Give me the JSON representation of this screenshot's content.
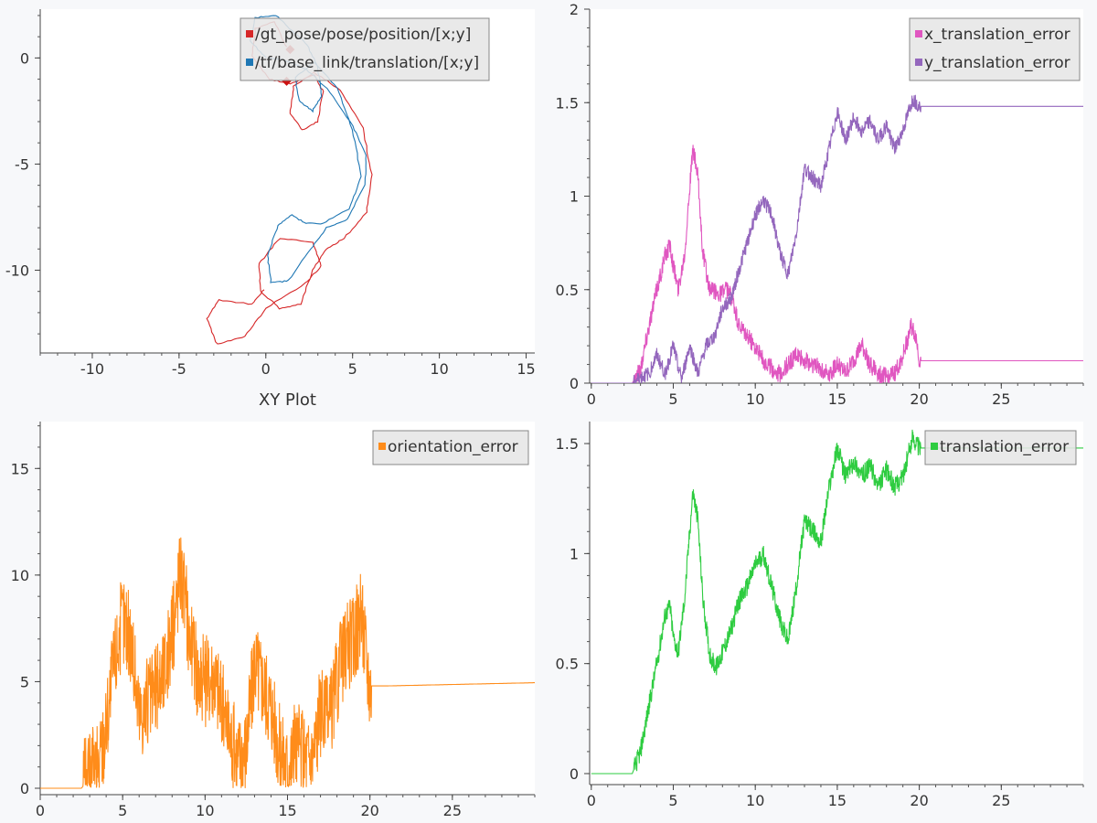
{
  "chart_data": [
    {
      "id": "xy",
      "type": "line",
      "xlabel": "XY Plot",
      "xlim": [
        -13,
        15.5
      ],
      "ylim": [
        -13.9,
        2.3
      ],
      "xticks": [
        -10,
        -5,
        0,
        5,
        10,
        15
      ],
      "yticks": [
        0,
        -5,
        -10
      ],
      "legend_position": "top-right",
      "series": [
        {
          "name": "/gt_pose/pose/position/[x;y]",
          "color": "#d62728",
          "points": [
            [
              1.2,
              0.5
            ],
            [
              0.5,
              1.7
            ],
            [
              -0.6,
              1.4
            ],
            [
              -0.8,
              0.1
            ],
            [
              0.2,
              -1.0
            ],
            [
              1.4,
              -1.2
            ],
            [
              2.8,
              -0.8
            ],
            [
              3.3,
              -1.6
            ],
            [
              3.0,
              -3.0
            ],
            [
              2.1,
              -3.4
            ],
            [
              1.4,
              -2.6
            ],
            [
              1.6,
              -1.3
            ],
            [
              2.8,
              -0.7
            ],
            [
              4.3,
              -1.5
            ],
            [
              5.6,
              -3.3
            ],
            [
              6.1,
              -5.5
            ],
            [
              5.8,
              -7.3
            ],
            [
              4.5,
              -8.5
            ],
            [
              3.5,
              -9.0
            ],
            [
              2.7,
              -10.0
            ],
            [
              2.0,
              -11.6
            ],
            [
              0.8,
              -11.8
            ],
            [
              -0.3,
              -11.0
            ],
            [
              -0.4,
              -9.7
            ],
            [
              0.8,
              -8.5
            ],
            [
              2.7,
              -8.7
            ],
            [
              3.2,
              -9.8
            ],
            [
              2.3,
              -10.6
            ],
            [
              0.0,
              -11.8
            ],
            [
              -1.2,
              -13.1
            ],
            [
              -2.8,
              -13.5
            ],
            [
              -3.4,
              -12.3
            ],
            [
              -2.7,
              -11.4
            ],
            [
              -0.8,
              -11.6
            ],
            [
              0.0,
              -10.8
            ]
          ]
        },
        {
          "name": "/tf/base_link/translation/[x;y]",
          "color": "#1f77b4",
          "points": [
            [
              0.0,
              0.0
            ],
            [
              -0.9,
              0.8
            ],
            [
              -0.6,
              1.9
            ],
            [
              0.6,
              2.0
            ],
            [
              1.5,
              1.3
            ],
            [
              2.4,
              0.6
            ],
            [
              3.0,
              -0.4
            ],
            [
              3.2,
              -1.8
            ],
            [
              2.7,
              -2.5
            ],
            [
              1.9,
              -2.0
            ],
            [
              1.7,
              -0.9
            ],
            [
              2.8,
              -0.2
            ],
            [
              4.1,
              -1.4
            ],
            [
              5.0,
              -3.4
            ],
            [
              5.5,
              -5.6
            ],
            [
              4.8,
              -7.1
            ],
            [
              3.3,
              -7.8
            ],
            [
              2.3,
              -7.8
            ],
            [
              1.5,
              -7.4
            ],
            [
              0.7,
              -7.9
            ],
            [
              0.1,
              -9.3
            ],
            [
              0.3,
              -10.6
            ],
            [
              1.3,
              -10.5
            ],
            [
              2.6,
              -9.0
            ],
            [
              3.5,
              -8.0
            ],
            [
              4.7,
              -7.6
            ],
            [
              5.7,
              -6.0
            ],
            [
              5.8,
              -4.6
            ],
            [
              5.0,
              -3.2
            ],
            [
              3.7,
              -1.6
            ],
            [
              2.3,
              -0.5
            ],
            [
              1.0,
              -0.1
            ],
            [
              0.0,
              0.0
            ]
          ]
        }
      ],
      "markers": [
        {
          "x": 1.4,
          "y": 0.4,
          "color": "#cc1111"
        },
        {
          "x": 1.2,
          "y": -1.1,
          "color": "#cc1111"
        }
      ]
    },
    {
      "id": "xy_err",
      "type": "line",
      "xlim": [
        -0.1,
        30
      ],
      "ylim": [
        0,
        2
      ],
      "xticks": [
        0,
        5,
        10,
        15,
        20,
        25
      ],
      "yticks": [
        0,
        0.5,
        1,
        1.5,
        2
      ],
      "legend_position": "top-right",
      "series": [
        {
          "name": "x_translation_error",
          "color": "#e056c0",
          "noise": 0.05,
          "points": [
            [
              0,
              0
            ],
            [
              2.5,
              0
            ],
            [
              3.0,
              0.08
            ],
            [
              3.5,
              0.3
            ],
            [
              4.0,
              0.5
            ],
            [
              4.5,
              0.68
            ],
            [
              4.8,
              0.74
            ],
            [
              5.0,
              0.63
            ],
            [
              5.3,
              0.5
            ],
            [
              5.7,
              0.7
            ],
            [
              6.0,
              1.05
            ],
            [
              6.2,
              1.25
            ],
            [
              6.5,
              1.1
            ],
            [
              6.8,
              0.7
            ],
            [
              7.2,
              0.5
            ],
            [
              7.8,
              0.48
            ],
            [
              8.3,
              0.5
            ],
            [
              8.6,
              0.45
            ],
            [
              9.0,
              0.3
            ],
            [
              9.5,
              0.25
            ],
            [
              10.0,
              0.2
            ],
            [
              10.5,
              0.12
            ],
            [
              11.0,
              0.08
            ],
            [
              11.5,
              0.05
            ],
            [
              12.0,
              0.1
            ],
            [
              12.5,
              0.15
            ],
            [
              13.0,
              0.12
            ],
            [
              13.5,
              0.1
            ],
            [
              14.0,
              0.08
            ],
            [
              14.5,
              0.05
            ],
            [
              15.0,
              0.1
            ],
            [
              15.5,
              0.05
            ],
            [
              16.0,
              0.12
            ],
            [
              16.5,
              0.2
            ],
            [
              17.0,
              0.1
            ],
            [
              17.5,
              0.05
            ],
            [
              18.0,
              0.03
            ],
            [
              18.5,
              0.05
            ],
            [
              19.0,
              0.15
            ],
            [
              19.5,
              0.3
            ],
            [
              19.8,
              0.25
            ],
            [
              20.0,
              0.12
            ],
            [
              21.0,
              0.12
            ],
            [
              30.0,
              0.12
            ]
          ]
        },
        {
          "name": "y_translation_error",
          "color": "#9467bd",
          "noise": 0.04,
          "points": [
            [
              0,
              0
            ],
            [
              2.5,
              0
            ],
            [
              3.0,
              0.03
            ],
            [
              3.5,
              0.05
            ],
            [
              4.0,
              0.15
            ],
            [
              4.5,
              0.05
            ],
            [
              5.0,
              0.2
            ],
            [
              5.5,
              0.02
            ],
            [
              6.0,
              0.2
            ],
            [
              6.5,
              0.05
            ],
            [
              7.0,
              0.2
            ],
            [
              7.5,
              0.25
            ],
            [
              8.0,
              0.4
            ],
            [
              8.5,
              0.45
            ],
            [
              9.0,
              0.6
            ],
            [
              9.5,
              0.75
            ],
            [
              10.0,
              0.9
            ],
            [
              10.5,
              0.98
            ],
            [
              11.0,
              0.9
            ],
            [
              11.5,
              0.7
            ],
            [
              12.0,
              0.58
            ],
            [
              12.5,
              0.8
            ],
            [
              13.0,
              1.15
            ],
            [
              13.5,
              1.1
            ],
            [
              14.0,
              1.05
            ],
            [
              14.5,
              1.25
            ],
            [
              15.0,
              1.45
            ],
            [
              15.5,
              1.3
            ],
            [
              16.0,
              1.42
            ],
            [
              16.5,
              1.35
            ],
            [
              17.0,
              1.4
            ],
            [
              17.5,
              1.3
            ],
            [
              18.0,
              1.38
            ],
            [
              18.5,
              1.25
            ],
            [
              19.0,
              1.35
            ],
            [
              19.6,
              1.52
            ],
            [
              20.0,
              1.48
            ],
            [
              21.0,
              1.48
            ],
            [
              30.0,
              1.48
            ]
          ]
        }
      ]
    },
    {
      "id": "orient",
      "type": "line",
      "xlim": [
        0,
        30
      ],
      "ylim": [
        -0.3,
        17.2
      ],
      "xticks": [
        0,
        5,
        10,
        15,
        20,
        25
      ],
      "yticks": [
        0,
        5,
        10,
        15
      ],
      "legend_position": "top-right",
      "series": [
        {
          "name": "orientation_error",
          "color": "#ff8c1a",
          "noise": 2.2,
          "points": [
            [
              0,
              0
            ],
            [
              2.5,
              0
            ],
            [
              3.0,
              0.5
            ],
            [
              3.5,
              1.0
            ],
            [
              4.0,
              3.0
            ],
            [
              4.5,
              6.0
            ],
            [
              5.0,
              8.0
            ],
            [
              5.5,
              7.0
            ],
            [
              6.0,
              3.5
            ],
            [
              6.5,
              4.0
            ],
            [
              7.0,
              4.5
            ],
            [
              7.5,
              5.5
            ],
            [
              8.0,
              7.0
            ],
            [
              8.5,
              10.5
            ],
            [
              9.0,
              7.5
            ],
            [
              9.5,
              5.5
            ],
            [
              10.0,
              5.0
            ],
            [
              10.5,
              5.5
            ],
            [
              11.0,
              4.0
            ],
            [
              11.5,
              2.5
            ],
            [
              12.0,
              1.5
            ],
            [
              12.5,
              2.0
            ],
            [
              13.0,
              6.0
            ],
            [
              13.5,
              5.0
            ],
            [
              14.0,
              4.0
            ],
            [
              14.5,
              2.0
            ],
            [
              15.0,
              1.0
            ],
            [
              15.5,
              2.0
            ],
            [
              16.0,
              1.5
            ],
            [
              16.5,
              1.5
            ],
            [
              17.0,
              3.5
            ],
            [
              17.5,
              3.0
            ],
            [
              18.0,
              5.0
            ],
            [
              18.5,
              6.5
            ],
            [
              19.0,
              7.0
            ],
            [
              19.5,
              8.0
            ],
            [
              20.0,
              4.8
            ],
            [
              21.0,
              4.8
            ],
            [
              30.0,
              4.95
            ]
          ]
        }
      ]
    },
    {
      "id": "trans",
      "type": "line",
      "xlim": [
        -0.1,
        30
      ],
      "ylim": [
        -0.05,
        1.6
      ],
      "xticks": [
        0,
        5,
        10,
        15,
        20,
        25
      ],
      "yticks": [
        0,
        0.5,
        1,
        1.5
      ],
      "legend_position": "top-right",
      "series": [
        {
          "name": "translation_error",
          "color": "#2ecc40",
          "noise": 0.045,
          "points": [
            [
              0,
              0
            ],
            [
              2.5,
              0
            ],
            [
              3.0,
              0.1
            ],
            [
              3.5,
              0.3
            ],
            [
              4.0,
              0.5
            ],
            [
              4.5,
              0.72
            ],
            [
              4.8,
              0.76
            ],
            [
              5.0,
              0.62
            ],
            [
              5.3,
              0.55
            ],
            [
              5.7,
              0.8
            ],
            [
              6.0,
              1.1
            ],
            [
              6.2,
              1.28
            ],
            [
              6.5,
              1.15
            ],
            [
              6.8,
              0.8
            ],
            [
              7.2,
              0.55
            ],
            [
              7.6,
              0.48
            ],
            [
              8.0,
              0.55
            ],
            [
              8.5,
              0.65
            ],
            [
              9.0,
              0.78
            ],
            [
              9.5,
              0.85
            ],
            [
              10.0,
              0.95
            ],
            [
              10.5,
              1.0
            ],
            [
              11.0,
              0.85
            ],
            [
              11.5,
              0.7
            ],
            [
              12.0,
              0.6
            ],
            [
              12.5,
              0.85
            ],
            [
              13.0,
              1.15
            ],
            [
              13.5,
              1.1
            ],
            [
              14.0,
              1.05
            ],
            [
              14.5,
              1.3
            ],
            [
              15.0,
              1.48
            ],
            [
              15.5,
              1.35
            ],
            [
              16.0,
              1.42
            ],
            [
              16.5,
              1.35
            ],
            [
              17.0,
              1.4
            ],
            [
              17.5,
              1.3
            ],
            [
              18.0,
              1.38
            ],
            [
              18.5,
              1.3
            ],
            [
              19.0,
              1.35
            ],
            [
              19.6,
              1.53
            ],
            [
              20.0,
              1.48
            ],
            [
              21.0,
              1.48
            ],
            [
              30.0,
              1.48
            ]
          ]
        }
      ]
    }
  ]
}
